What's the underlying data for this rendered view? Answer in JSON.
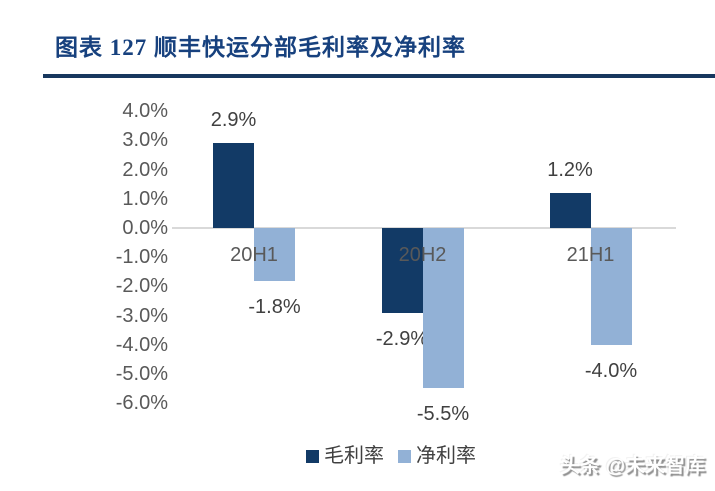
{
  "header": {
    "title": "图表 127  顺丰快运分部毛利率及净利率"
  },
  "colors": {
    "title_blue": "#17417E",
    "rule_blue": "#17375E",
    "gross_margin_bar": "#123A66",
    "net_margin_bar": "#92B1D6",
    "axis_line": "#D9D9D9",
    "tick_text": "#595959",
    "label_text": "#404040"
  },
  "chart_data": {
    "type": "bar",
    "title": "顺丰快运分部毛利率及净利率",
    "categories": [
      "20H1",
      "20H2",
      "21H1"
    ],
    "series": [
      {
        "name": "毛利率",
        "color": "#123A66",
        "values": [
          2.9,
          -2.9,
          1.2
        ],
        "labels": [
          "2.9%",
          "-2.9%",
          "1.2%"
        ]
      },
      {
        "name": "净利率",
        "color": "#92B1D6",
        "values": [
          -1.8,
          -5.5,
          -4.0
        ],
        "labels": [
          "-1.8%",
          "-5.5%",
          "-4.0%"
        ]
      }
    ],
    "y_axis": {
      "max": 4.0,
      "min": -6.0,
      "step": 1.0,
      "tick_labels": [
        "4.0%",
        "3.0%",
        "2.0%",
        "1.0%",
        "0.0%",
        "-1.0%",
        "-2.0%",
        "-3.0%",
        "-4.0%",
        "-5.0%",
        "-6.0%"
      ]
    },
    "legend": {
      "position": "bottom",
      "entries": [
        "毛利率",
        "净利率"
      ]
    },
    "grid": false
  },
  "watermark": "头条 @未来智库"
}
